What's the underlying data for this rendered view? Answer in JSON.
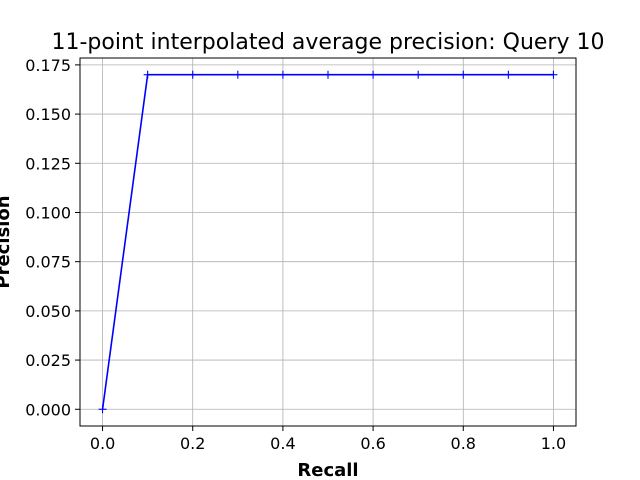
{
  "chart_data": {
    "type": "line",
    "title": "11-point interpolated average precision: Query 10",
    "xlabel": "Recall",
    "ylabel": "Precision",
    "xlim": [
      -0.05,
      1.05
    ],
    "ylim": [
      -0.0085,
      0.1785
    ],
    "grid": true,
    "x_ticks": [
      0.0,
      0.2,
      0.4,
      0.6,
      0.8,
      1.0
    ],
    "x_tick_labels": [
      "0.0",
      "0.2",
      "0.4",
      "0.6",
      "0.8",
      "1.0"
    ],
    "y_ticks": [
      0.0,
      0.025,
      0.05,
      0.075,
      0.1,
      0.125,
      0.15,
      0.175
    ],
    "y_tick_labels": [
      "0.000",
      "0.025",
      "0.050",
      "0.075",
      "0.100",
      "0.125",
      "0.150",
      "0.175"
    ],
    "series": [
      {
        "color": "#0000ff",
        "marker": "plus",
        "x": [
          0.0,
          0.1,
          0.2,
          0.3,
          0.4,
          0.5,
          0.6,
          0.7,
          0.8,
          0.9,
          1.0
        ],
        "y": [
          0.0,
          0.17,
          0.17,
          0.17,
          0.17,
          0.17,
          0.17,
          0.17,
          0.17,
          0.17,
          0.17
        ]
      }
    ]
  }
}
